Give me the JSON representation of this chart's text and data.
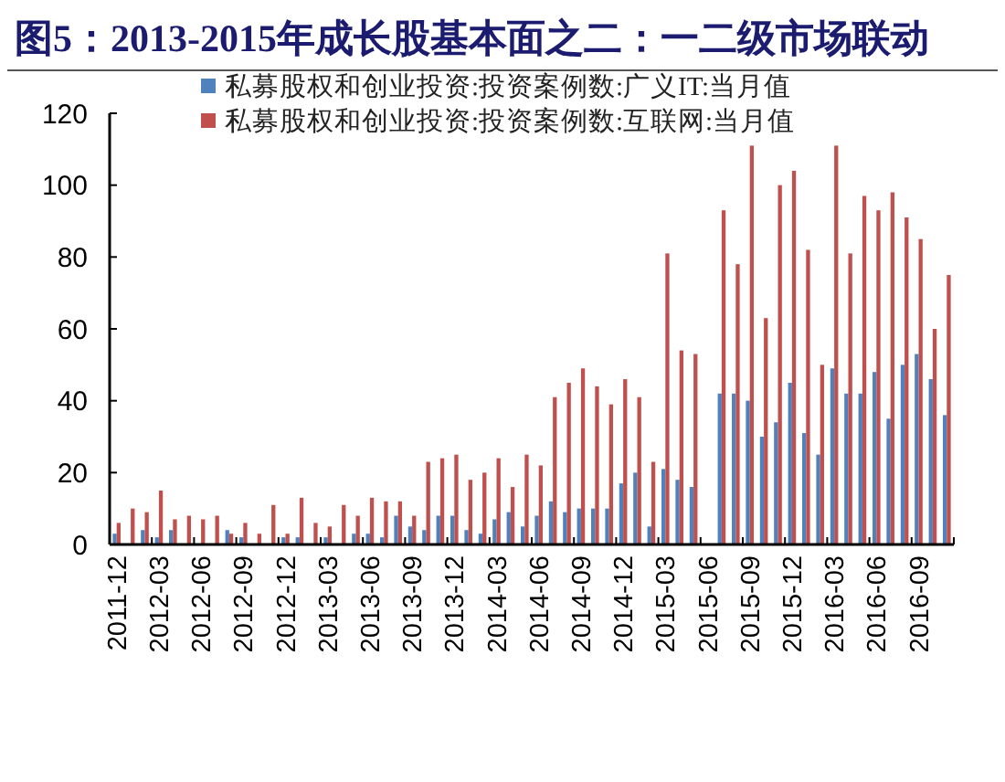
{
  "chart_data": {
    "type": "bar",
    "title": "图5：2013-2015年成长股基本面之二：一二级市场联动",
    "categories": [
      "2011-12",
      null,
      null,
      "2012-03",
      null,
      null,
      "2012-06",
      null,
      null,
      "2012-09",
      null,
      null,
      "2012-12",
      null,
      null,
      "2013-03",
      null,
      null,
      "2013-06",
      null,
      null,
      "2013-09",
      null,
      null,
      "2013-12",
      null,
      null,
      "2014-03",
      null,
      null,
      "2014-06",
      null,
      null,
      "2014-09",
      null,
      null,
      "2014-12",
      null,
      null,
      "2015-03",
      null,
      null,
      "2015-06",
      null,
      null,
      "2015-09",
      null,
      null,
      "2015-12",
      null,
      null,
      "2016-03",
      null,
      null,
      "2016-06",
      null,
      null,
      "2016-09",
      null,
      null
    ],
    "series": [
      {
        "name": "私募股权和创业投资:投资案例数:广义IT:当月值",
        "color": "#4f81bd",
        "values": [
          3,
          0,
          4,
          2,
          4,
          0,
          0,
          0,
          4,
          2,
          0,
          0,
          2,
          2,
          0,
          2,
          0,
          3,
          3,
          2,
          8,
          5,
          4,
          8,
          8,
          4,
          3,
          7,
          9,
          5,
          8,
          12,
          9,
          10,
          10,
          10,
          17,
          20,
          5,
          21,
          18,
          16,
          null,
          42,
          42,
          40,
          30,
          34,
          45,
          31,
          25,
          49,
          42,
          42,
          48,
          35,
          50,
          53,
          46,
          36
        ]
      },
      {
        "name": "私募股权和创业投资:投资案例数:互联网:当月值",
        "color": "#c0504d",
        "values": [
          6,
          10,
          9,
          15,
          7,
          8,
          7,
          8,
          3,
          6,
          3,
          11,
          3,
          13,
          6,
          5,
          11,
          8,
          13,
          12,
          12,
          8,
          23,
          24,
          25,
          18,
          20,
          24,
          16,
          25,
          22,
          41,
          45,
          49,
          44,
          39,
          46,
          41,
          23,
          81,
          54,
          53,
          null,
          93,
          78,
          111,
          63,
          100,
          104,
          82,
          50,
          111,
          81,
          97,
          93,
          98,
          91,
          85,
          60,
          75
        ]
      }
    ],
    "ylim": [
      0,
      120
    ],
    "yticks": [
      0,
      20,
      40,
      60,
      80,
      100,
      120
    ],
    "legend": "top"
  }
}
